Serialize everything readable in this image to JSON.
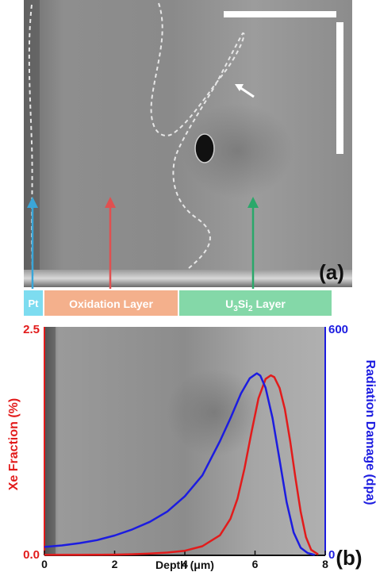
{
  "panel_a": {
    "label": "(a)",
    "layers": [
      {
        "name": "pt",
        "label": "Pt",
        "color": "#7ddcf0",
        "arrow": "#3aa6d8"
      },
      {
        "name": "oxidation",
        "label": "Oxidation Layer",
        "color": "#f4b08c",
        "arrow": "#e05050"
      },
      {
        "name": "u3si2",
        "label_main": "U",
        "sub1": "3",
        "mid": "Si",
        "sub2": "2",
        "label_end": " Layer",
        "color": "#84d8a8",
        "arrow": "#2aa86a"
      }
    ]
  },
  "panel_b": {
    "label": "(b)"
  },
  "chart_data": {
    "type": "line",
    "xlabel_main": "Depth (",
    "xlabel_unit": "μm",
    "xlabel_end": ")",
    "ylabel_left": "Xe Fraction (%)",
    "ylabel_right": "Radiation Damage (dpa)",
    "xlim": [
      0,
      8
    ],
    "ylim_left": [
      0,
      2.5
    ],
    "ylim_right": [
      0,
      600
    ],
    "x_ticks": [
      "0",
      "2",
      "4",
      "6",
      "8"
    ],
    "y_left_ticks": [
      "0.0",
      "2.5"
    ],
    "y_right_ticks": [
      "0",
      "600"
    ],
    "series": [
      {
        "axis": "left",
        "color": "#e21b1b",
        "x": [
          0,
          0.5,
          1,
          1.5,
          2,
          2.5,
          3,
          3.5,
          4,
          4.5,
          5,
          5.3,
          5.5,
          5.7,
          5.9,
          6.1,
          6.3,
          6.45,
          6.55,
          6.7,
          6.85,
          7.0,
          7.15,
          7.3,
          7.45,
          7.6,
          7.8
        ],
        "y": [
          0.005,
          0.005,
          0.005,
          0.006,
          0.008,
          0.012,
          0.02,
          0.03,
          0.05,
          0.1,
          0.22,
          0.4,
          0.62,
          0.95,
          1.35,
          1.72,
          1.93,
          1.97,
          1.95,
          1.83,
          1.6,
          1.25,
          0.85,
          0.48,
          0.2,
          0.06,
          0.01
        ]
      },
      {
        "axis": "right",
        "color": "#1c1ce0",
        "x": [
          0,
          0.5,
          1,
          1.5,
          2,
          2.5,
          3,
          3.5,
          4,
          4.5,
          5,
          5.3,
          5.6,
          5.85,
          6.05,
          6.15,
          6.3,
          6.5,
          6.7,
          6.9,
          7.1,
          7.3,
          7.5,
          7.7
        ],
        "y": [
          22,
          26,
          32,
          40,
          52,
          68,
          88,
          115,
          155,
          210,
          300,
          360,
          425,
          465,
          478,
          472,
          440,
          360,
          250,
          140,
          60,
          20,
          6,
          1
        ]
      }
    ]
  }
}
